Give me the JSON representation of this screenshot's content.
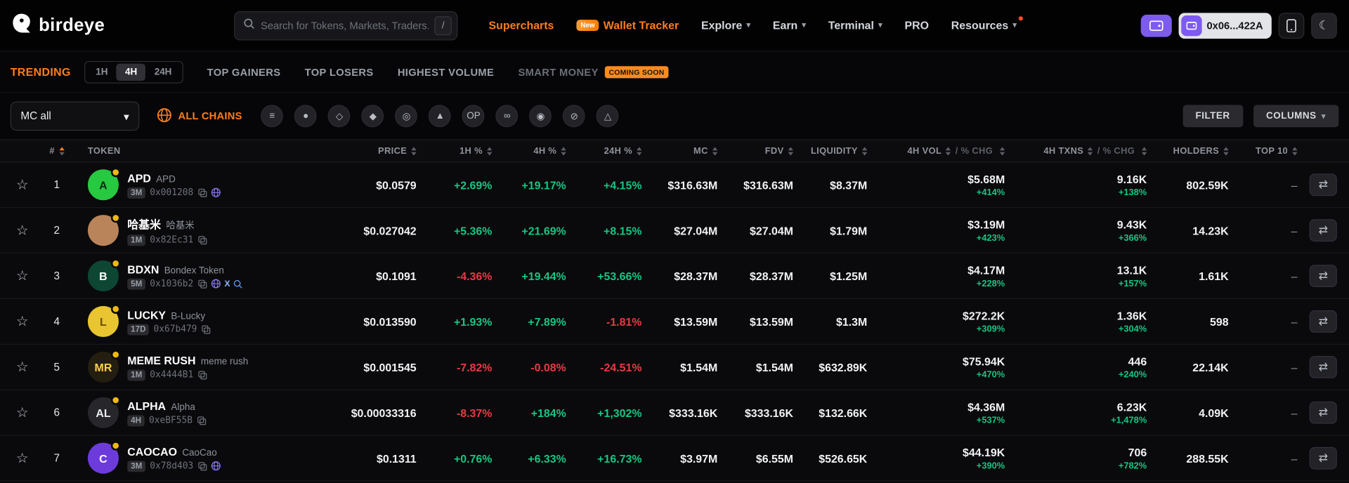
{
  "header": {
    "logo": "birdeye",
    "search_placeholder": "Search for Tokens, Markets, Traders...",
    "search_shortcut": "/",
    "nav": {
      "supercharts": "Supercharts",
      "wallet_tracker": "Wallet Tracker",
      "wallet_tracker_badge": "New",
      "explore": "Explore",
      "earn": "Earn",
      "terminal": "Terminal",
      "pro": "PRO",
      "resources": "Resources"
    },
    "wallet_address": "0x06...422A"
  },
  "tabs": {
    "trending": "TRENDING",
    "times": [
      "1H",
      "4H",
      "24H"
    ],
    "active_time": "4H",
    "top_gainers": "TOP GAINERS",
    "top_losers": "TOP LOSERS",
    "highest_volume": "HIGHEST VOLUME",
    "smart_money": "SMART MONEY",
    "smart_money_badge": "COMING SOON"
  },
  "filters": {
    "mc_dropdown": "MC all",
    "all_chains": "ALL CHAINS",
    "chains": [
      {
        "name": "solana",
        "glyph": "≡"
      },
      {
        "name": "bnb",
        "glyph": "●"
      },
      {
        "name": "ethereum",
        "glyph": "◇"
      },
      {
        "name": "polygon",
        "glyph": "◆"
      },
      {
        "name": "base",
        "glyph": "◎"
      },
      {
        "name": "avalanche",
        "glyph": "▲"
      },
      {
        "name": "optimism",
        "glyph": "OP"
      },
      {
        "name": "sui",
        "glyph": "∞"
      },
      {
        "name": "arbitrum",
        "glyph": "◉"
      },
      {
        "name": "zksync",
        "glyph": "⊘"
      },
      {
        "name": "starknet",
        "glyph": "△"
      }
    ],
    "filter_btn": "FILTER",
    "columns_btn": "COLUMNS"
  },
  "table": {
    "header": {
      "col_rank": "#",
      "col_token": "TOKEN",
      "col_price": "PRICE",
      "col_1h": "1H %",
      "col_4h": "4H %",
      "col_24h": "24H %",
      "col_mc": "MC",
      "col_fdv": "FDV",
      "col_liquidity": "LIQUIDITY",
      "col_vol": "4H VOL",
      "col_vol_chg": "/ % CHG",
      "col_txns": "4H TXNS",
      "col_txns_chg": "/ % CHG",
      "col_holders": "HOLDERS",
      "col_top10": "TOP 10"
    },
    "rows": [
      {
        "rank": "1",
        "symbol": "APD",
        "name": "APD",
        "age": "3M",
        "address": "0x001208",
        "links": [
          "copy",
          "web"
        ],
        "icon": {
          "bg": "#27c940",
          "fg": "#062b10",
          "text": "A"
        },
        "price": "$0.0579",
        "chg_1h": "+2.69%",
        "chg_4h": "+19.17%",
        "chg_24h": "+4.15%",
        "mc": "$316.63M",
        "fdv": "$316.63M",
        "liquidity": "$8.37M",
        "vol": "$5.68M",
        "vol_chg": "+414%",
        "txns": "9.16K",
        "txns_chg": "+138%",
        "holders": "802.59K",
        "top10": "–"
      },
      {
        "rank": "2",
        "symbol": "哈基米",
        "name": "哈基米",
        "age": "1M",
        "address": "0x82Ec31",
        "links": [
          "copy"
        ],
        "icon": {
          "bg": "#b9845a",
          "fg": "#3d2a16",
          "text": ""
        },
        "price": "$0.027042",
        "chg_1h": "+5.36%",
        "chg_4h": "+21.69%",
        "chg_24h": "+8.15%",
        "mc": "$27.04M",
        "fdv": "$27.04M",
        "liquidity": "$1.79M",
        "vol": "$3.19M",
        "vol_chg": "+423%",
        "txns": "9.43K",
        "txns_chg": "+366%",
        "holders": "14.23K",
        "top10": "–"
      },
      {
        "rank": "3",
        "symbol": "BDXN",
        "name": "Bondex Token",
        "age": "5M",
        "address": "0x1036b2",
        "links": [
          "copy",
          "web",
          "x",
          "search"
        ],
        "icon": {
          "bg": "#0e4634",
          "fg": "#ffffff",
          "text": "B"
        },
        "price": "$0.1091",
        "chg_1h": "-4.36%",
        "chg_4h": "+19.44%",
        "chg_24h": "+53.66%",
        "mc": "$28.37M",
        "fdv": "$28.37M",
        "liquidity": "$1.25M",
        "vol": "$4.17M",
        "vol_chg": "+228%",
        "txns": "13.1K",
        "txns_chg": "+157%",
        "holders": "1.61K",
        "top10": "–"
      },
      {
        "rank": "4",
        "symbol": "LUCKY",
        "name": "B-Lucky",
        "age": "17D",
        "address": "0x67b479",
        "links": [
          "copy"
        ],
        "icon": {
          "bg": "#e8c531",
          "fg": "#6b4e00",
          "text": "L"
        },
        "price": "$0.013590",
        "chg_1h": "+1.93%",
        "chg_4h": "+7.89%",
        "chg_24h": "-1.81%",
        "mc": "$13.59M",
        "fdv": "$13.59M",
        "liquidity": "$1.3M",
        "vol": "$272.2K",
        "vol_chg": "+309%",
        "txns": "1.36K",
        "txns_chg": "+304%",
        "holders": "598",
        "top10": "–"
      },
      {
        "rank": "5",
        "symbol": "MEME RUSH",
        "name": "meme rush",
        "age": "1M",
        "address": "0x4444B1",
        "links": [
          "copy"
        ],
        "icon": {
          "bg": "#241e10",
          "fg": "#ffd24a",
          "text": "MR"
        },
        "price": "$0.001545",
        "chg_1h": "-7.82%",
        "chg_4h": "-0.08%",
        "chg_24h": "-24.51%",
        "mc": "$1.54M",
        "fdv": "$1.54M",
        "liquidity": "$632.89K",
        "vol": "$75.94K",
        "vol_chg": "+470%",
        "txns": "446",
        "txns_chg": "+240%",
        "holders": "22.14K",
        "top10": "–"
      },
      {
        "rank": "6",
        "symbol": "ALPHA",
        "name": "Alpha",
        "age": "4H",
        "address": "0xeBF55B",
        "links": [
          "copy"
        ],
        "icon": {
          "bg": "#26262b",
          "fg": "#e8eaec",
          "text": "AL"
        },
        "price": "$0.00033316",
        "chg_1h": "-8.37%",
        "chg_4h": "+184%",
        "chg_24h": "+1,302%",
        "mc": "$333.16K",
        "fdv": "$333.16K",
        "liquidity": "$132.66K",
        "vol": "$4.36M",
        "vol_chg": "+537%",
        "txns": "6.23K",
        "txns_chg": "+1,478%",
        "holders": "4.09K",
        "top10": "–"
      },
      {
        "rank": "7",
        "symbol": "CAOCAO",
        "name": "CaoCao",
        "age": "3M",
        "address": "0x78d403",
        "links": [
          "copy",
          "web"
        ],
        "icon": {
          "bg": "#6d3bdc",
          "fg": "#ffffff",
          "text": "C"
        },
        "price": "$0.1311",
        "chg_1h": "+0.76%",
        "chg_4h": "+6.33%",
        "chg_24h": "+16.73%",
        "mc": "$3.97M",
        "fdv": "$6.55M",
        "liquidity": "$526.65K",
        "vol": "$44.19K",
        "vol_chg": "+390%",
        "txns": "706",
        "txns_chg": "+782%",
        "holders": "288.55K",
        "top10": "–"
      }
    ]
  }
}
